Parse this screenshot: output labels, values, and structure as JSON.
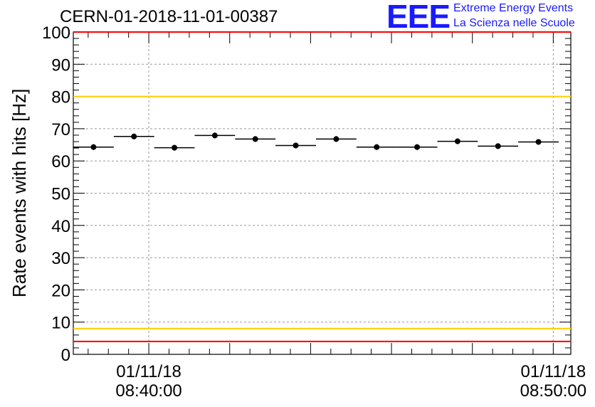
{
  "chart_data": {
    "type": "scatter",
    "title": "CERN-01-2018-11-01-00387",
    "ylabel": "Rate events with hits [Hz]",
    "xlabel": "",
    "ylim": [
      0,
      100
    ],
    "xlim": [
      "2018-11-01 08:38:08",
      "2018-11-01 08:50:26"
    ],
    "yticks": [
      0,
      10,
      20,
      30,
      40,
      50,
      60,
      70,
      80,
      90,
      100
    ],
    "xtick_labels": [
      {
        "x": "2018-11-01 08:40:00",
        "date": "01/11/18",
        "time": "08:40:00"
      },
      {
        "x": "2018-11-01 08:50:00",
        "date": "01/11/18",
        "time": "08:50:00"
      }
    ],
    "grid": true,
    "reference_lines": [
      {
        "y": 100,
        "color": "#ff0000"
      },
      {
        "y": 80,
        "color": "#ffcc00"
      },
      {
        "y": 8,
        "color": "#ffcc00"
      },
      {
        "y": 4,
        "color": "#ff0000"
      }
    ],
    "bin_width_seconds": 60,
    "points": [
      {
        "x": "2018-11-01 08:38:38",
        "y": 64.3
      },
      {
        "x": "2018-11-01 08:39:38",
        "y": 67.6
      },
      {
        "x": "2018-11-01 08:40:38",
        "y": 64.1
      },
      {
        "x": "2018-11-01 08:41:38",
        "y": 67.9
      },
      {
        "x": "2018-11-01 08:42:38",
        "y": 66.8
      },
      {
        "x": "2018-11-01 08:43:38",
        "y": 64.8
      },
      {
        "x": "2018-11-01 08:44:38",
        "y": 66.8
      },
      {
        "x": "2018-11-01 08:45:38",
        "y": 64.3
      },
      {
        "x": "2018-11-01 08:46:38",
        "y": 64.3
      },
      {
        "x": "2018-11-01 08:47:38",
        "y": 66.1
      },
      {
        "x": "2018-11-01 08:48:38",
        "y": 64.6
      },
      {
        "x": "2018-11-01 08:49:38",
        "y": 65.9
      }
    ]
  },
  "logo": {
    "mark": "EEE",
    "line1": "Extreme Energy Events",
    "line2": "La Scienza nelle Scuole",
    "color": "#1a1aff"
  }
}
